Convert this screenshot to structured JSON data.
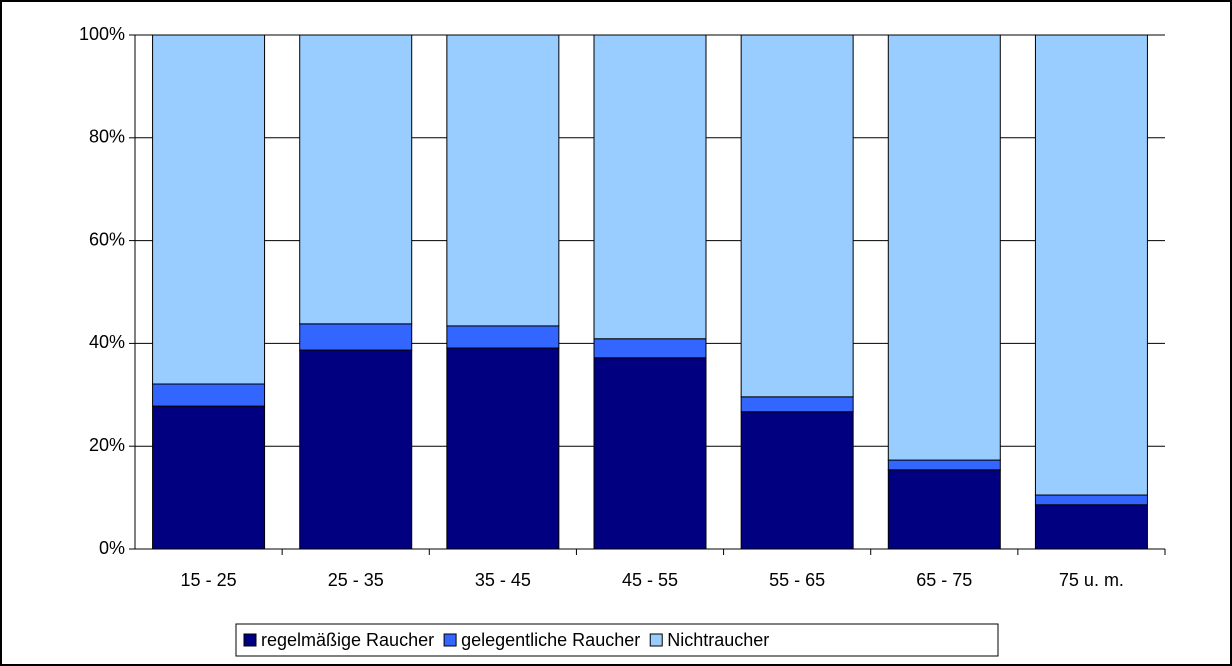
{
  "chart_data": {
    "type": "stacked_bar",
    "categories": [
      "15 - 25",
      "25 - 35",
      "35 - 45",
      "45 - 55",
      "55 - 65",
      "65 - 75",
      "75 u. m."
    ],
    "series": [
      {
        "name": "regelmäßige Raucher",
        "color": "#000080",
        "values": [
          27.8,
          38.7,
          39.1,
          37.2,
          26.7,
          15.4,
          8.6
        ]
      },
      {
        "name": "gelegentliche Raucher",
        "color": "#3366ff",
        "values": [
          4.3,
          5.1,
          4.3,
          3.7,
          2.9,
          1.9,
          1.9
        ]
      },
      {
        "name": "Nichtraucher",
        "color": "#99ccff",
        "values": [
          67.9,
          56.2,
          56.6,
          59.1,
          70.4,
          82.7,
          89.5
        ]
      }
    ],
    "ylim": [
      0,
      100
    ],
    "yticks": [
      {
        "value": 0,
        "label": "0%"
      },
      {
        "value": 20,
        "label": "20%"
      },
      {
        "value": 40,
        "label": "40%"
      },
      {
        "value": 60,
        "label": "60%"
      },
      {
        "value": 80,
        "label": "80%"
      },
      {
        "value": 100,
        "label": "100%"
      }
    ],
    "grid": true,
    "legend": "bottom"
  }
}
